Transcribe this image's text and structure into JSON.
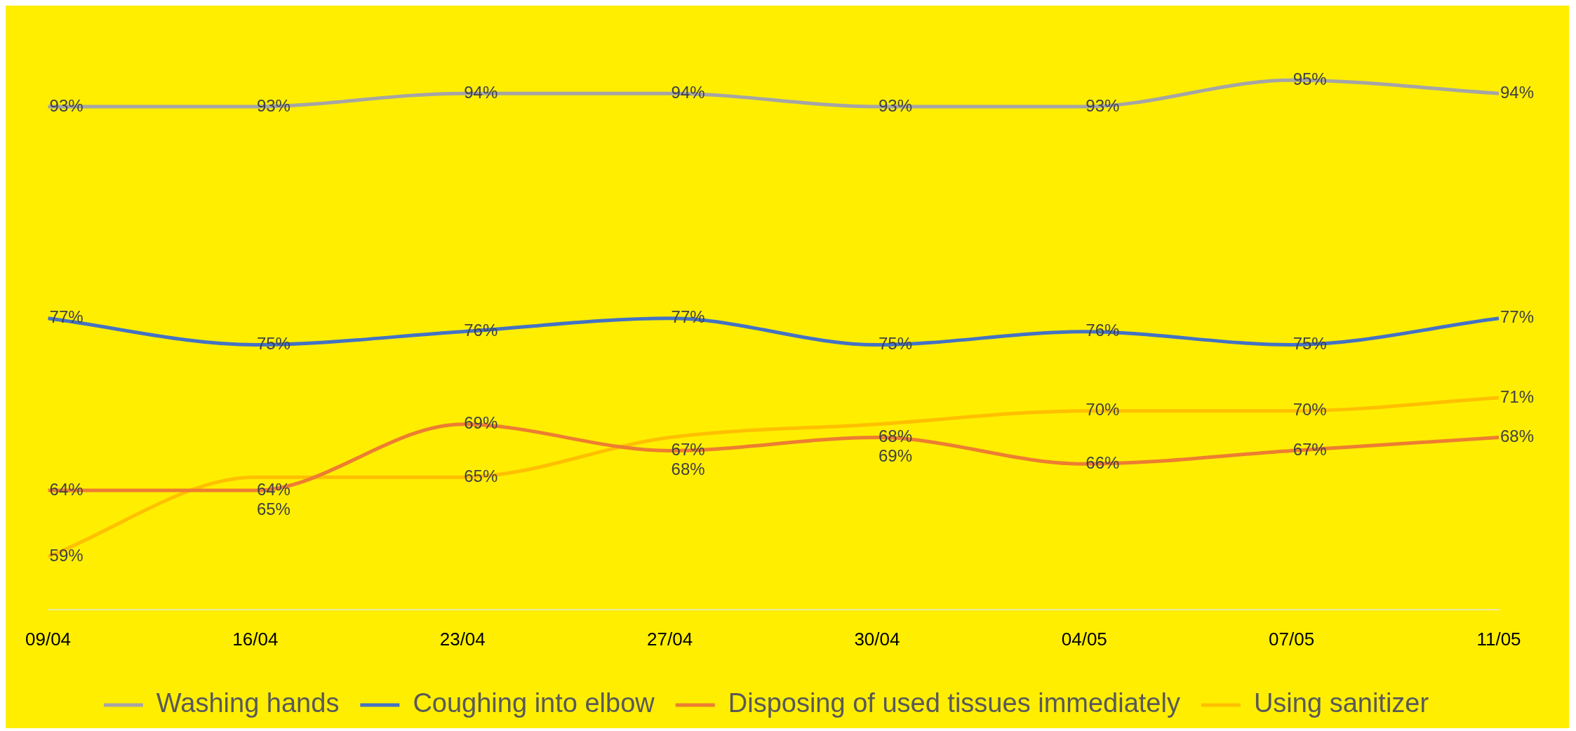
{
  "chart_data": {
    "type": "line",
    "categories": [
      "09/04",
      "16/04",
      "23/04",
      "27/04",
      "30/04",
      "04/05",
      "07/05",
      "11/05"
    ],
    "series": [
      {
        "name": "Washing hands",
        "color": "#a5a5a5",
        "values": [
          93,
          93,
          94,
          94,
          93,
          93,
          95,
          94
        ],
        "value_labels": [
          "93%",
          "93%",
          "94%",
          "94%",
          "93%",
          "93%",
          "95%",
          "94%"
        ]
      },
      {
        "name": "Coughing into elbow",
        "color": "#4472c4",
        "values": [
          77,
          75,
          76,
          77,
          75,
          76,
          75,
          77
        ],
        "value_labels": [
          "77%",
          "75%",
          "76%",
          "77%",
          "75%",
          "76%",
          "75%",
          "77%"
        ]
      },
      {
        "name": "Disposing of used tissues immediately",
        "color": "#ed7d31",
        "values": [
          64,
          64,
          69,
          67,
          68,
          66,
          67,
          68
        ],
        "value_labels": [
          "64%",
          "64%",
          "69%",
          "67%",
          "68%",
          "66%",
          "67%",
          "68%"
        ]
      },
      {
        "name": "Using sanitizer",
        "color": "#ffc000",
        "values": [
          59,
          65,
          65,
          68,
          69,
          70,
          70,
          71
        ],
        "value_labels": [
          "59%",
          "65%",
          "65%",
          "68%",
          "69%",
          "70%",
          "70%",
          "71%"
        ]
      }
    ],
    "tick_labels": "x",
    "grid": false,
    "legend": "bottom",
    "marker": "none",
    "line_style": "solid"
  }
}
